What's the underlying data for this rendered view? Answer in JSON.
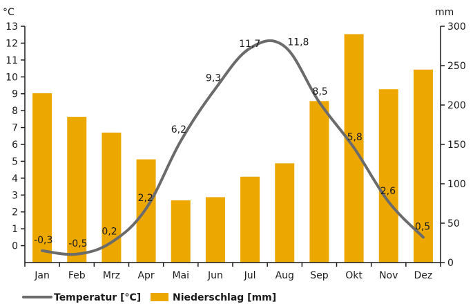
{
  "chart_data": {
    "type": "bar+line",
    "categories": [
      "Jan",
      "Feb",
      "Mrz",
      "Apr",
      "Mai",
      "Jun",
      "Jul",
      "Aug",
      "Sep",
      "Okt",
      "Nov",
      "Dez"
    ],
    "series": [
      {
        "name": "Niederschlag [mm]",
        "type": "bar",
        "axis": "right",
        "values": [
          215,
          185,
          165,
          131,
          79,
          83,
          109,
          126,
          205,
          290,
          220,
          245
        ]
      },
      {
        "name": "Temperatur [°C]",
        "type": "line",
        "axis": "left",
        "values": [
          -0.3,
          -0.5,
          0.2,
          2.2,
          6.2,
          9.3,
          11.7,
          11.8,
          8.5,
          5.8,
          2.6,
          0.5
        ],
        "labels": [
          "-0,3",
          "-0,5",
          "0,2",
          "2,2",
          "6,2",
          "9,3",
          "11,7",
          "11,8",
          "8,5",
          "5,8",
          "2,6",
          "0,5"
        ]
      }
    ],
    "y_left": {
      "unit": "°C",
      "range": [
        -1,
        13
      ],
      "ticks": [
        0,
        1,
        2,
        3,
        4,
        5,
        6,
        7,
        8,
        9,
        10,
        11,
        12,
        13
      ]
    },
    "y_right": {
      "unit": "mm",
      "range": [
        0,
        300
      ],
      "ticks": [
        0,
        50,
        100,
        150,
        200,
        250,
        300
      ]
    },
    "grid": false,
    "legend": "bottom-left",
    "colors": {
      "bar": "#EDA800",
      "line": "#6B6B6B",
      "axis": "#1a1a1a"
    }
  }
}
